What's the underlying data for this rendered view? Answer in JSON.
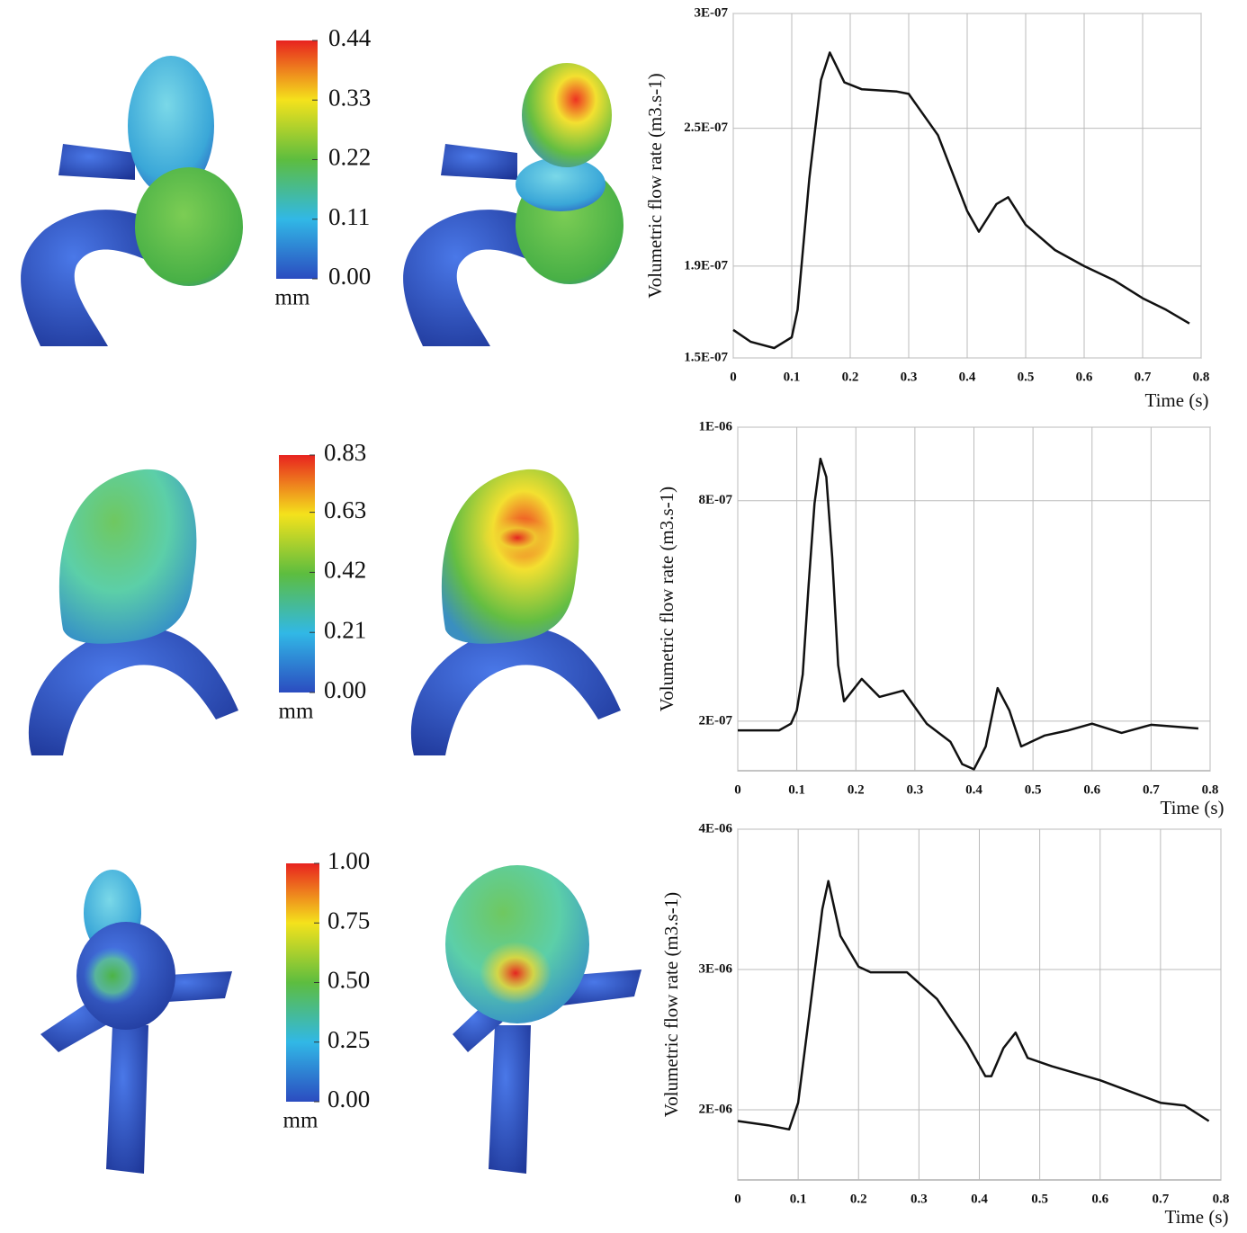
{
  "chart_data": [
    {
      "type": "line",
      "x_label": "Time (s)",
      "y_label": "Volumetric flow rate  (m3.s-1)",
      "xlim": [
        0,
        0.8
      ],
      "xticks": [
        0,
        0.1,
        0.2,
        0.3,
        0.4,
        0.5,
        0.6,
        0.7,
        0.8
      ],
      "ylim": [
        1.5e-07,
        3e-07
      ],
      "yticks": [
        {
          "value": 1.5e-07,
          "label": "1.5E-07"
        },
        {
          "value": 1.9e-07,
          "label": "1.9E-07"
        },
        {
          "value": 2.5e-07,
          "label": "2.5E-07"
        },
        {
          "value": 3e-07,
          "label": "3E-07"
        }
      ],
      "grid": true,
      "series": [
        {
          "color": "#111111",
          "x": [
            0,
            0.03,
            0.07,
            0.1,
            0.11,
            0.13,
            0.15,
            0.165,
            0.19,
            0.22,
            0.28,
            0.3,
            0.35,
            0.4,
            0.42,
            0.45,
            0.47,
            0.5,
            0.55,
            0.6,
            0.65,
            0.7,
            0.74,
            0.78
          ],
          "values": [
            1.622e-07,
            1.57e-07,
            1.543e-07,
            1.59e-07,
            1.71e-07,
            2.28e-07,
            2.71e-07,
            2.83e-07,
            2.7e-07,
            2.67e-07,
            2.66e-07,
            2.65e-07,
            2.47e-07,
            2.14e-07,
            2.05e-07,
            2.17e-07,
            2.2e-07,
            2.08e-07,
            1.97e-07,
            1.9e-07,
            1.84e-07,
            1.76e-07,
            1.71e-07,
            1.65e-07
          ]
        }
      ]
    },
    {
      "type": "line",
      "x_label": "Time (s)",
      "y_label": "Volumetric flow rate  (m3.s-1)",
      "xlim": [
        0,
        0.8
      ],
      "xticks": [
        0,
        0.1,
        0.2,
        0.3,
        0.4,
        0.5,
        0.6,
        0.7,
        0.8
      ],
      "ylim": [
        6.5e-08,
        1e-06
      ],
      "yticks": [
        {
          "value": 2e-07,
          "label": "2E-07"
        },
        {
          "value": 8e-07,
          "label": "8E-07"
        },
        {
          "value": 1e-06,
          "label": "1E-06"
        }
      ],
      "grid": true,
      "series": [
        {
          "color": "#111111",
          "x": [
            0,
            0.07,
            0.09,
            0.1,
            0.11,
            0.12,
            0.13,
            0.14,
            0.15,
            0.16,
            0.17,
            0.18,
            0.21,
            0.24,
            0.28,
            0.32,
            0.36,
            0.38,
            0.4,
            0.42,
            0.44,
            0.46,
            0.48,
            0.52,
            0.56,
            0.6,
            0.65,
            0.7,
            0.78
          ],
          "values": [
            1.75e-07,
            1.75e-07,
            1.93e-07,
            2.29e-07,
            3.27e-07,
            5.72e-07,
            7.92e-07,
            9.14e-07,
            8.65e-07,
            6.45e-07,
            3.52e-07,
            2.54e-07,
            3.15e-07,
            2.66e-07,
            2.83e-07,
            1.93e-07,
            1.44e-07,
            8.3e-08,
            6.9e-08,
            1.31e-07,
            2.9e-07,
            2.29e-07,
            1.31e-07,
            1.61e-07,
            1.75e-07,
            1.93e-07,
            1.68e-07,
            1.9e-07,
            1.8e-07
          ]
        }
      ]
    },
    {
      "type": "line",
      "x_label": "Time (s)",
      "y_label": "Volumetric flow rate  (m3.s-1)",
      "xlim": [
        0,
        0.8
      ],
      "xticks": [
        0,
        0.1,
        0.2,
        0.3,
        0.4,
        0.5,
        0.6,
        0.7,
        0.8
      ],
      "ylim": [
        1.5e-06,
        4e-06
      ],
      "yticks": [
        {
          "value": 2e-06,
          "label": "2E-06"
        },
        {
          "value": 3e-06,
          "label": "3E-06"
        },
        {
          "value": 4e-06,
          "label": "4E-06"
        }
      ],
      "grid": true,
      "series": [
        {
          "color": "#111111",
          "x": [
            0,
            0.05,
            0.085,
            0.1,
            0.12,
            0.14,
            0.15,
            0.17,
            0.2,
            0.22,
            0.28,
            0.33,
            0.38,
            0.41,
            0.42,
            0.44,
            0.46,
            0.48,
            0.52,
            0.6,
            0.65,
            0.7,
            0.74,
            0.78
          ],
          "values": [
            1.92e-06,
            1.89e-06,
            1.86e-06,
            2.05e-06,
            2.73e-06,
            3.43e-06,
            3.63e-06,
            3.24e-06,
            3.02e-06,
            2.98e-06,
            2.98e-06,
            2.79e-06,
            2.47e-06,
            2.24e-06,
            2.24e-06,
            2.44e-06,
            2.55e-06,
            2.37e-06,
            2.31e-06,
            2.21e-06,
            2.13e-06,
            2.05e-06,
            2.03e-06,
            1.92e-06
          ]
        }
      ]
    }
  ],
  "colorbars": [
    {
      "range": [
        0,
        0.44
      ],
      "unit": "mm",
      "ticks": [
        {
          "value": 0,
          "label": "0.00"
        },
        0.11,
        0.22,
        0.33,
        0.44
      ]
    },
    {
      "range": [
        0,
        0.83
      ],
      "unit": "mm",
      "ticks": [
        {
          "value": 0,
          "label": "0.00"
        },
        0.21,
        0.42,
        0.63,
        0.83
      ]
    },
    {
      "range": [
        0,
        1
      ],
      "unit": "mm",
      "ticks": [
        {
          "value": 0,
          "label": "0.00"
        },
        0.25,
        {
          "value": 0.5,
          "label": "0.50"
        },
        0.75,
        {
          "value": 1,
          "label": "1.00"
        }
      ]
    }
  ]
}
